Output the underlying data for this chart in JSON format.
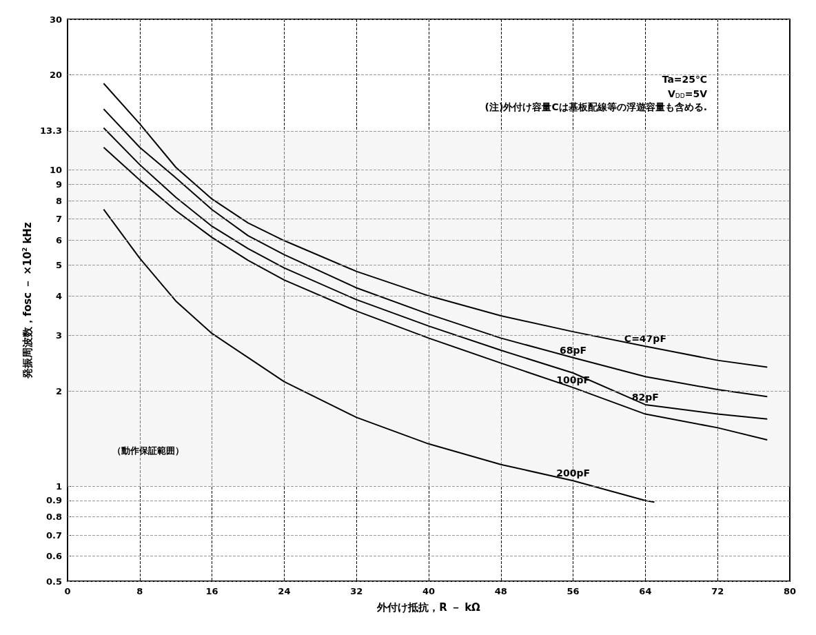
{
  "chart_data": {
    "type": "line",
    "xlabel": "外付け抵抗，R － kΩ",
    "ylabel": "発振周波数，fosc － ×10$^{2}$ kHz",
    "x": [
      4,
      8,
      12,
      16,
      20,
      24,
      32,
      40,
      48,
      56,
      64,
      72,
      77.5
    ],
    "series": [
      {
        "name": "C=47pF",
        "color": "#000000",
        "values": [
          18.8,
          14.0,
          10.2,
          8.1,
          6.8,
          5.98,
          4.78,
          4.0,
          3.46,
          3.08,
          2.77,
          2.5,
          2.38
        ]
      },
      {
        "name": "68pF",
        "color": "#000000",
        "values": [
          15.6,
          11.8,
          9.45,
          7.5,
          6.2,
          5.4,
          4.24,
          3.5,
          2.94,
          2.55,
          2.22,
          2.02,
          1.92
        ]
      },
      {
        "name": "82pF",
        "color": "#000000",
        "values": [
          13.6,
          10.4,
          8.2,
          6.64,
          5.64,
          4.9,
          3.89,
          3.21,
          2.69,
          2.28,
          1.81,
          1.69,
          1.63
        ]
      },
      {
        "name": "100pF",
        "color": "#000000",
        "values": [
          11.8,
          9.3,
          7.44,
          6.12,
          5.18,
          4.49,
          3.58,
          2.94,
          2.45,
          2.05,
          1.69,
          1.53,
          1.4
        ]
      },
      {
        "name": "200pF",
        "color": "#000000",
        "x": [
          4,
          8,
          12,
          16,
          20,
          24,
          32,
          40,
          48,
          56,
          64,
          65
        ],
        "values": [
          7.51,
          5.26,
          3.85,
          3.04,
          2.55,
          2.14,
          1.65,
          1.36,
          1.17,
          1.04,
          0.9,
          0.89
        ]
      }
    ],
    "xlim": [
      0,
      80
    ],
    "xticks": [
      0,
      8,
      16,
      24,
      32,
      40,
      48,
      56,
      64,
      72,
      80
    ],
    "ylim": [
      0.5,
      30
    ],
    "yticks": [
      0.5,
      0.6,
      0.7,
      0.8,
      0.9,
      1,
      2,
      3,
      4,
      5,
      6,
      7,
      8,
      9,
      10,
      13.3,
      20,
      30
    ],
    "log": "y",
    "grid": true,
    "legend": false,
    "marker": "none",
    "line_style": "solid",
    "bands": [
      {
        "axis": "y",
        "from": 1,
        "to": 13.3,
        "label": "（動作保証範囲）",
        "color": "#eeeeee"
      }
    ],
    "annotations": [
      "Ta=25℃",
      "V$_{DD}$=5V",
      "(注)外付け容量Cは基板配線等の浮遊容量も含める."
    ]
  }
}
